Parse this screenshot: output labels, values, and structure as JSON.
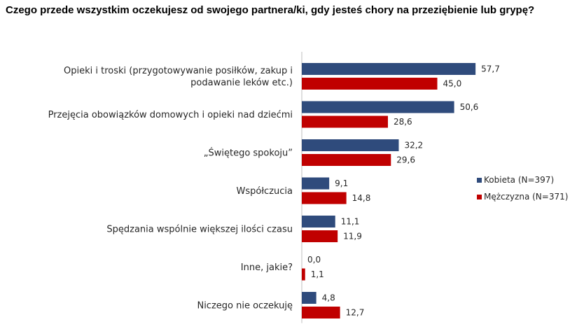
{
  "chart_data": {
    "type": "bar",
    "orientation": "horizontal",
    "title": "Czego przede wszystkim oczekujesz od swojego partnera/ki, gdy jesteś chory na przeziębienie lub grypę?",
    "categories": [
      [
        "Opieki i troski (przygotowywanie posiłków, zakup i",
        "podawanie leków etc.)"
      ],
      [
        "Przejęcia obowiązków domowych i opieki nad dziećmi"
      ],
      [
        "„Świętego spokoju”"
      ],
      [
        "Współczucia"
      ],
      [
        "Spędzania wspólnie większej ilości czasu"
      ],
      [
        "Inne, jakie?"
      ],
      [
        "Niczego nie oczekuję"
      ]
    ],
    "series": [
      {
        "name": "Kobieta (N=397)",
        "color": "#2F4B7C",
        "values": [
          57.7,
          50.6,
          32.2,
          9.1,
          11.1,
          0.0,
          4.8
        ],
        "labels": [
          "57,7",
          "50,6",
          "32,2",
          "9,1",
          "11,1",
          "0,0",
          "4,8"
        ]
      },
      {
        "name": "Mężczyzna (N=371)",
        "color": "#C00000",
        "values": [
          45.0,
          28.6,
          29.6,
          14.8,
          11.9,
          1.1,
          12.7
        ],
        "labels": [
          "45,0",
          "28,6",
          "29,6",
          "14,8",
          "11,9",
          "1,1",
          "12,7"
        ]
      }
    ],
    "xlim": [
      0,
      100
    ],
    "grid": false,
    "legend_position": "right",
    "axis_color": "#BFBFBF"
  }
}
